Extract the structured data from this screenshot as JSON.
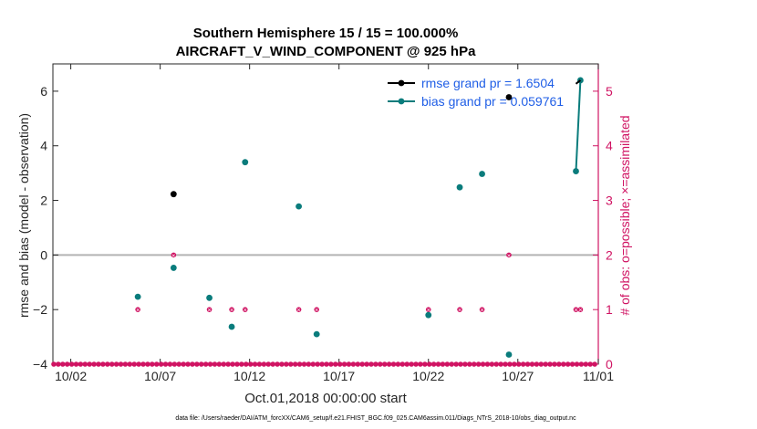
{
  "chart_data": {
    "type": "line",
    "title_line1": "Southern Hemisphere 15 / 15 = 100.000%",
    "title_line2": "AIRCRAFT_V_WIND_COMPONENT @ 925 hPa",
    "xlabel": "Oct.01,2018 00:00:00 start",
    "ylabel": "rmse and bias (model - observation)",
    "ylabel_right": "# of obs: o=possible; ×=assimilated",
    "xlim": [
      0.5,
      31.0
    ],
    "ylim": [
      -4,
      7
    ],
    "ylim_right": [
      0,
      5.5
    ],
    "x_ticks": [
      {
        "x": 1.5,
        "label": "10/02"
      },
      {
        "x": 6.5,
        "label": "10/07"
      },
      {
        "x": 11.5,
        "label": "10/12"
      },
      {
        "x": 16.5,
        "label": "10/17"
      },
      {
        "x": 21.5,
        "label": "10/22"
      },
      {
        "x": 26.5,
        "label": "10/27"
      },
      {
        "x": 31.0,
        "label": "11/01"
      }
    ],
    "y_ticks": [
      -4,
      -2,
      0,
      2,
      4,
      6
    ],
    "y_ticks_right": [
      0,
      1,
      2,
      3,
      4,
      5
    ],
    "zero_line": 0,
    "series": [
      {
        "name": "rmse",
        "legend": "rmse grand pr = 1.6504",
        "color": "#000000",
        "points": [
          [
            7.25,
            2.23
          ],
          [
            26.0,
            5.78
          ]
        ],
        "line_segment": [
          [
            29.75,
            6.27
          ],
          [
            30.0,
            6.4
          ]
        ]
      },
      {
        "name": "bias",
        "legend": "bias grand pr = 0.059761",
        "color": "#0a7c7c",
        "points": [
          [
            5.25,
            -1.53
          ],
          [
            7.25,
            -0.47
          ],
          [
            9.25,
            -1.57
          ],
          [
            10.5,
            -2.63
          ],
          [
            11.25,
            3.4
          ],
          [
            14.25,
            1.78
          ],
          [
            15.25,
            -2.9
          ],
          [
            21.5,
            -2.2
          ],
          [
            23.25,
            2.48
          ],
          [
            24.5,
            2.97
          ],
          [
            26.0,
            -3.65
          ],
          [
            29.75,
            3.07
          ],
          [
            30.0,
            6.4
          ]
        ],
        "line_segment": [
          [
            29.75,
            3.07
          ],
          [
            30.0,
            6.4
          ]
        ]
      },
      {
        "name": "obs_possible",
        "color": "#d01463",
        "axis": "right",
        "nonzero_points": [
          [
            5.25,
            1
          ],
          [
            7.25,
            2
          ],
          [
            9.25,
            1
          ],
          [
            10.5,
            1
          ],
          [
            11.25,
            1
          ],
          [
            14.25,
            1
          ],
          [
            15.25,
            1
          ],
          [
            21.5,
            1
          ],
          [
            23.25,
            1
          ],
          [
            24.5,
            1
          ],
          [
            26.0,
            2
          ],
          [
            29.75,
            1
          ],
          [
            30.0,
            1
          ]
        ],
        "baseline_start": 0.55,
        "baseline_end": 30.95,
        "baseline_step": 0.25
      }
    ],
    "footnote": "data file: /Users/raeder/DAI/ATM_forcXX/CAM6_setup/f.e21.FHIST_BGC.f09_025.CAM6assim.011/Diags_NTrS_2018-10/obs_diag_output.nc"
  }
}
